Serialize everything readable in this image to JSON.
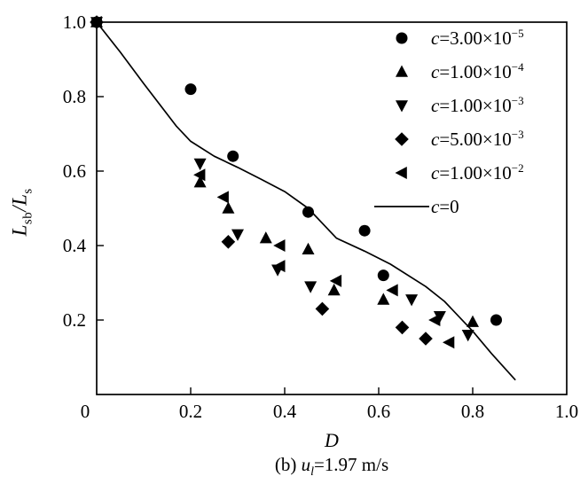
{
  "colors": {
    "ink": "#000000",
    "background": "#ffffff"
  },
  "axes": {
    "x_label": "D",
    "y_label_parts": {
      "numerator_base": "L",
      "numerator_sub": "sb",
      "divider": "/",
      "denominator_base": "L",
      "denominator_sub": "s"
    },
    "caption_parts": {
      "prefix": "(b) ",
      "variable": "u",
      "subscript": "l",
      "value": "=1.97 m/s"
    }
  },
  "chart_data": {
    "type": "scatter",
    "title": "",
    "xlabel": "D",
    "ylabel": "Lsb/Ls",
    "xlim": [
      0,
      1.0
    ],
    "ylim": [
      0,
      1.0
    ],
    "grid": false,
    "legend_position": "inside upper right",
    "x_ticks": [
      {
        "value": 0,
        "label": "0"
      },
      {
        "value": 0.2,
        "label": "0.2"
      },
      {
        "value": 0.4,
        "label": "0.4"
      },
      {
        "value": 0.6,
        "label": "0.6"
      },
      {
        "value": 0.8,
        "label": "0.8"
      },
      {
        "value": 1.0,
        "label": "1.0"
      }
    ],
    "y_ticks": [
      {
        "value": 0.2,
        "label": "0.2"
      },
      {
        "value": 0.4,
        "label": "0.4"
      },
      {
        "value": 0.6,
        "label": "0.6"
      },
      {
        "value": 0.8,
        "label": "0.8"
      },
      {
        "value": 1.0,
        "label": "1.0"
      }
    ],
    "series": [
      {
        "name": "c=3.00×10^-5",
        "marker": "circle",
        "points": [
          [
            0,
            1.0
          ],
          [
            0.2,
            0.82
          ],
          [
            0.29,
            0.64
          ],
          [
            0.45,
            0.49
          ],
          [
            0.57,
            0.44
          ],
          [
            0.61,
            0.32
          ],
          [
            0.85,
            0.2
          ]
        ]
      },
      {
        "name": "c=1.00×10^-4",
        "marker": "triangle-up",
        "points": [
          [
            0,
            1.0
          ],
          [
            0.22,
            0.57
          ],
          [
            0.28,
            0.5
          ],
          [
            0.36,
            0.42
          ],
          [
            0.45,
            0.39
          ],
          [
            0.505,
            0.28
          ],
          [
            0.61,
            0.255
          ],
          [
            0.8,
            0.195
          ]
        ]
      },
      {
        "name": "c=1.00×10^-3",
        "marker": "triangle-down",
        "points": [
          [
            0,
            1.0
          ],
          [
            0.22,
            0.62
          ],
          [
            0.3,
            0.43
          ],
          [
            0.385,
            0.335
          ],
          [
            0.455,
            0.29
          ],
          [
            0.67,
            0.255
          ],
          [
            0.73,
            0.21
          ],
          [
            0.79,
            0.16
          ]
        ]
      },
      {
        "name": "c=5.00×10^-3",
        "marker": "diamond",
        "points": [
          [
            0,
            1.0
          ],
          [
            0.28,
            0.41
          ],
          [
            0.48,
            0.23
          ],
          [
            0.65,
            0.18
          ],
          [
            0.7,
            0.15
          ]
        ]
      },
      {
        "name": "c=1.00×10^-2",
        "marker": "triangle-left",
        "points": [
          [
            0,
            1.0
          ],
          [
            0.22,
            0.59
          ],
          [
            0.27,
            0.53
          ],
          [
            0.39,
            0.4
          ],
          [
            0.39,
            0.345
          ],
          [
            0.51,
            0.305
          ],
          [
            0.63,
            0.28
          ],
          [
            0.72,
            0.2
          ],
          [
            0.75,
            0.14
          ]
        ]
      },
      {
        "name": "c=0",
        "marker": "line",
        "points": [
          [
            0,
            1.0
          ],
          [
            0.05,
            0.92
          ],
          [
            0.1,
            0.835
          ],
          [
            0.17,
            0.72
          ],
          [
            0.2,
            0.68
          ],
          [
            0.25,
            0.64
          ],
          [
            0.3,
            0.61
          ],
          [
            0.35,
            0.578
          ],
          [
            0.4,
            0.545
          ],
          [
            0.45,
            0.5
          ],
          [
            0.51,
            0.42
          ],
          [
            0.57,
            0.385
          ],
          [
            0.625,
            0.35
          ],
          [
            0.7,
            0.29
          ],
          [
            0.74,
            0.25
          ],
          [
            0.8,
            0.17
          ],
          [
            0.84,
            0.11
          ],
          [
            0.89,
            0.04
          ]
        ]
      }
    ],
    "legend": [
      {
        "marker": "circle",
        "var": "c",
        "eq": "=3.00×10",
        "sup": "−5"
      },
      {
        "marker": "triangle-up",
        "var": "c",
        "eq": "=1.00×10",
        "sup": "−4"
      },
      {
        "marker": "triangle-down",
        "var": "c",
        "eq": "=1.00×10",
        "sup": "−3"
      },
      {
        "marker": "diamond",
        "var": "c",
        "eq": "=5.00×10",
        "sup": "−3"
      },
      {
        "marker": "triangle-left",
        "var": "c",
        "eq": "=1.00×10",
        "sup": "−2"
      },
      {
        "marker": "line",
        "var": "c",
        "eq": "=0",
        "sup": ""
      }
    ]
  }
}
